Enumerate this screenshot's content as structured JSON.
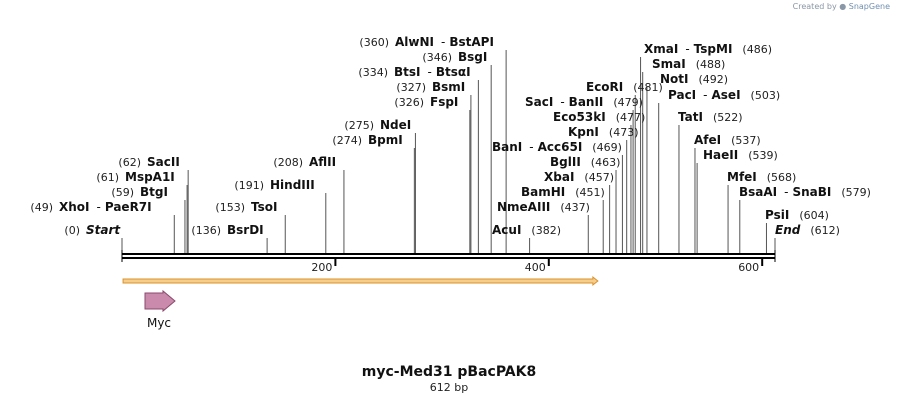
{
  "header": {
    "created_by": "Created by",
    "brand": "SnapGene"
  },
  "plasmid": {
    "name": "myc-Med31 pBacPAK8",
    "length_label": "612 bp",
    "length": 612
  },
  "colors": {
    "backbone": "#000000",
    "orf_fill": "#f6ce8a",
    "orf_stroke": "#d9922e",
    "feature_fill": "#c98aab"
  },
  "chart_data": {
    "type": "linear_map",
    "title": "myc-Med31 pBacPAK8",
    "subtitle": "612 bp",
    "axis": {
      "min": 0,
      "max": 612,
      "ticks": [
        200,
        400,
        600
      ]
    },
    "orf": {
      "start": 1,
      "end": 446
    },
    "feature": {
      "name": "Myc",
      "direction": "forward"
    },
    "sites": [
      {
        "pos": 0,
        "label": "Start",
        "italic": true
      },
      {
        "pos": 49,
        "label": "XhoI",
        "label2": "PaeR7I"
      },
      {
        "pos": 59,
        "label": "BtgI"
      },
      {
        "pos": 61,
        "label": "MspA1I"
      },
      {
        "pos": 62,
        "label": "SacII"
      },
      {
        "pos": 136,
        "label": "BsrDI"
      },
      {
        "pos": 153,
        "label": "TsoI"
      },
      {
        "pos": 191,
        "label": "HindIII"
      },
      {
        "pos": 208,
        "label": "AflII"
      },
      {
        "pos": 274,
        "label": "BpmI"
      },
      {
        "pos": 275,
        "label": "NdeI"
      },
      {
        "pos": 326,
        "label": "FspI"
      },
      {
        "pos": 327,
        "label": "BsmI"
      },
      {
        "pos": 334,
        "label": "BtsI",
        "label2": "BtsαI"
      },
      {
        "pos": 346,
        "label": "BsgI"
      },
      {
        "pos": 360,
        "label": "AlwNI",
        "label2": "BstAPI"
      },
      {
        "pos": 382,
        "label": "AcuI"
      },
      {
        "pos": 437,
        "label": "NmeAIII"
      },
      {
        "pos": 451,
        "label": "BamHI"
      },
      {
        "pos": 457,
        "label": "XbaI"
      },
      {
        "pos": 463,
        "label": "BglII"
      },
      {
        "pos": 469,
        "label": "BanI",
        "label2": "Acc65I"
      },
      {
        "pos": 473,
        "label": "KpnI"
      },
      {
        "pos": 477,
        "label": "Eco53kI"
      },
      {
        "pos": 479,
        "label": "SacI",
        "label2": "BanII"
      },
      {
        "pos": 481,
        "label": "EcoRI"
      },
      {
        "pos": 486,
        "label": "XmaI",
        "label2": "TspMI"
      },
      {
        "pos": 488,
        "label": "SmaI"
      },
      {
        "pos": 492,
        "label": "NotI"
      },
      {
        "pos": 503,
        "label": "PacI",
        "label2": "AseI"
      },
      {
        "pos": 522,
        "label": "TatI"
      },
      {
        "pos": 537,
        "label": "AfeI"
      },
      {
        "pos": 539,
        "label": "HaeII"
      },
      {
        "pos": 568,
        "label": "MfeI"
      },
      {
        "pos": 579,
        "label": "BsaAI",
        "label2": "SnaBI"
      },
      {
        "pos": 604,
        "label": "PsiI"
      },
      {
        "pos": 612,
        "label": "End",
        "italic": true
      }
    ]
  }
}
